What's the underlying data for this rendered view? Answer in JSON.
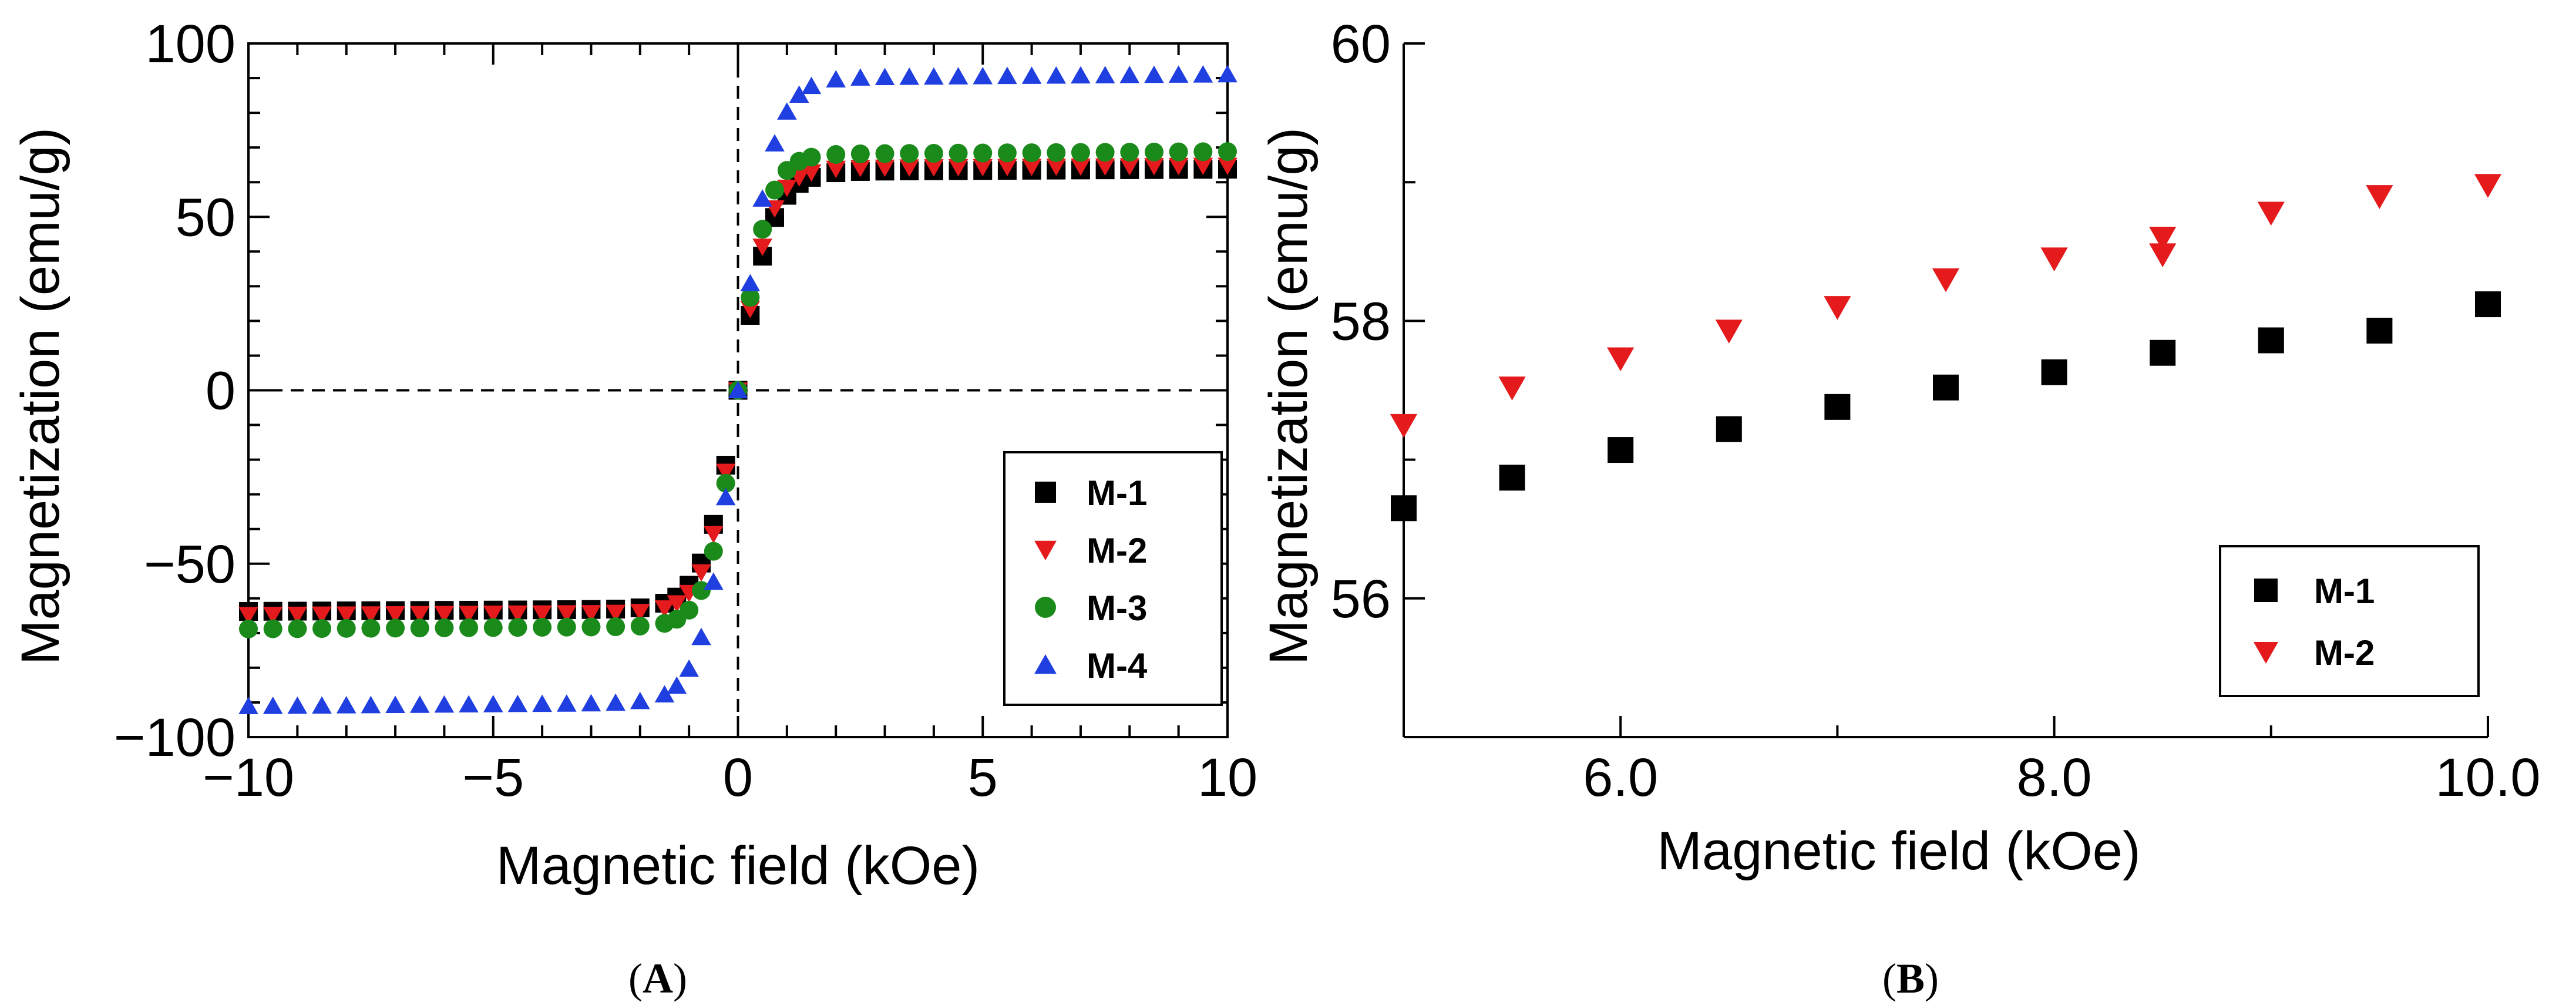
{
  "chart_data": [
    {
      "panel_label": "A",
      "type": "scatter",
      "xlabel": "Magnetic field (kOe)",
      "ylabel": "Magnetization (emu/g)",
      "xlim": [
        -10,
        10
      ],
      "ylim": [
        -100,
        100
      ],
      "x_ticks": [
        -10,
        -5,
        0,
        5,
        10
      ],
      "x_tick_labels": [
        "−10",
        "−5",
        "0",
        "5",
        "10"
      ],
      "y_ticks": [
        -100,
        -50,
        0,
        50,
        100
      ],
      "y_tick_labels": [
        "−100",
        "−50",
        "0",
        "50",
        "100"
      ],
      "reference_lines": {
        "x": 0,
        "y": 0,
        "style": "dashed"
      },
      "legend_position": "lower-right",
      "series": [
        {
          "name": "M-1",
          "marker": "square",
          "color": "#000000",
          "Ms": 63,
          "H0": 0.7
        },
        {
          "name": "M-2",
          "marker": "triangle-down",
          "color": "#e41a1c",
          "Ms": 64,
          "H0": 0.65
        },
        {
          "name": "M-3",
          "marker": "circle",
          "color": "#1a8a1a",
          "Ms": 68,
          "H0": 0.6
        },
        {
          "name": "M-4",
          "marker": "triangle-up",
          "color": "#1f3fe0",
          "Ms": 90,
          "H0": 0.7
        }
      ]
    },
    {
      "panel_label": "B",
      "type": "scatter",
      "xlabel": "Magnetic field (kOe)",
      "ylabel": "Magnetization (emu/g)",
      "xlim": [
        5.0,
        10.0
      ],
      "ylim": [
        55,
        60
      ],
      "x_ticks": [
        6.0,
        8.0,
        10.0
      ],
      "x_tick_labels": [
        "6.0",
        "8.0",
        "10.0"
      ],
      "y_ticks": [
        56,
        58,
        60
      ],
      "y_tick_labels": [
        "56",
        "58",
        "60"
      ],
      "legend_position": "lower-right",
      "series": [
        {
          "name": "M-1",
          "marker": "square",
          "color": "#000000",
          "x": [
            5.0,
            5.5,
            6.0,
            6.5,
            7.0,
            7.5,
            8.0,
            8.5,
            9.0,
            9.5,
            10.0
          ],
          "y": [
            56.65,
            56.87,
            57.07,
            57.22,
            57.38,
            57.52,
            57.63,
            57.77,
            57.86,
            57.93,
            58.12
          ]
        },
        {
          "name": "M-2",
          "marker": "triangle-down",
          "color": "#e41a1c",
          "x": [
            5.0,
            5.5,
            6.0,
            6.5,
            7.0,
            7.5,
            8.0,
            8.5,
            8.5,
            9.0,
            9.5,
            10.0
          ],
          "y": [
            57.25,
            57.52,
            57.73,
            57.93,
            58.1,
            58.3,
            58.45,
            58.6,
            58.48,
            58.78,
            58.9,
            58.98
          ]
        }
      ]
    }
  ]
}
